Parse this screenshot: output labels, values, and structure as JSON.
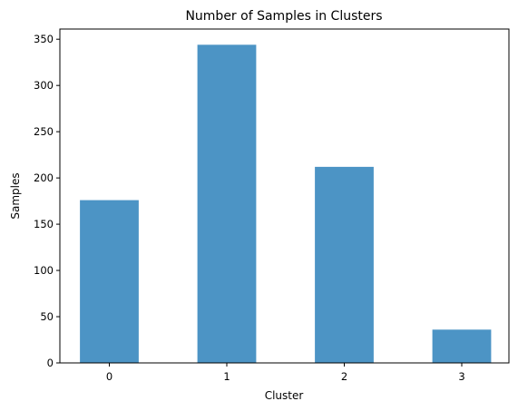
{
  "chart_data": {
    "type": "bar",
    "title": "Number of Samples in Clusters",
    "xlabel": "Cluster",
    "ylabel": "Samples",
    "categories": [
      "0",
      "1",
      "2",
      "3"
    ],
    "values": [
      176,
      344,
      212,
      36
    ],
    "ylim": [
      0,
      361
    ],
    "yticks": [
      0,
      50,
      100,
      150,
      200,
      250,
      300,
      350
    ],
    "bar_color": "#4c94c5",
    "grid": false,
    "legend": "none"
  }
}
